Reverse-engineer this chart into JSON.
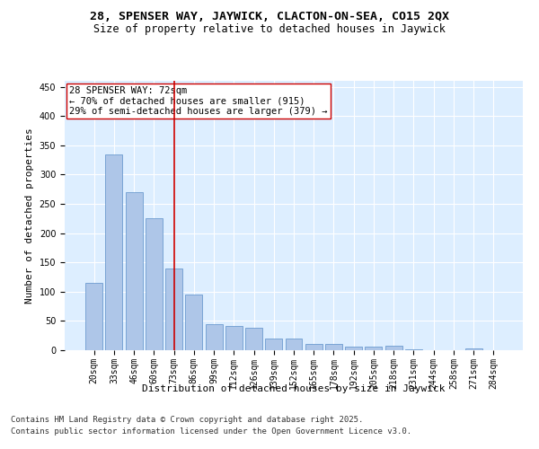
{
  "title_line1": "28, SPENSER WAY, JAYWICK, CLACTON-ON-SEA, CO15 2QX",
  "title_line2": "Size of property relative to detached houses in Jaywick",
  "xlabel": "Distribution of detached houses by size in Jaywick",
  "ylabel": "Number of detached properties",
  "categories": [
    "20sqm",
    "33sqm",
    "46sqm",
    "60sqm",
    "73sqm",
    "86sqm",
    "99sqm",
    "112sqm",
    "126sqm",
    "139sqm",
    "152sqm",
    "165sqm",
    "178sqm",
    "192sqm",
    "205sqm",
    "218sqm",
    "231sqm",
    "244sqm",
    "258sqm",
    "271sqm",
    "284sqm"
  ],
  "values": [
    115,
    335,
    270,
    225,
    140,
    95,
    45,
    42,
    38,
    20,
    20,
    11,
    10,
    6,
    6,
    7,
    2,
    0,
    0,
    3,
    0
  ],
  "bar_color": "#aec6e8",
  "bar_edge_color": "#5b8fc9",
  "vline_x_index": 4,
  "vline_color": "#cc0000",
  "annotation_text": "28 SPENSER WAY: 72sqm\n← 70% of detached houses are smaller (915)\n29% of semi-detached houses are larger (379) →",
  "annotation_box_facecolor": "#ffffff",
  "annotation_box_edgecolor": "#cc0000",
  "ylim": [
    0,
    460
  ],
  "yticks": [
    0,
    50,
    100,
    150,
    200,
    250,
    300,
    350,
    400,
    450
  ],
  "bg_color": "#ddeeff",
  "footer_line1": "Contains HM Land Registry data © Crown copyright and database right 2025.",
  "footer_line2": "Contains public sector information licensed under the Open Government Licence v3.0.",
  "title_fontsize": 9.5,
  "subtitle_fontsize": 8.5,
  "axis_label_fontsize": 8,
  "tick_fontsize": 7,
  "annotation_fontsize": 7.5,
  "footer_fontsize": 6.5,
  "ylabel_fontsize": 8
}
